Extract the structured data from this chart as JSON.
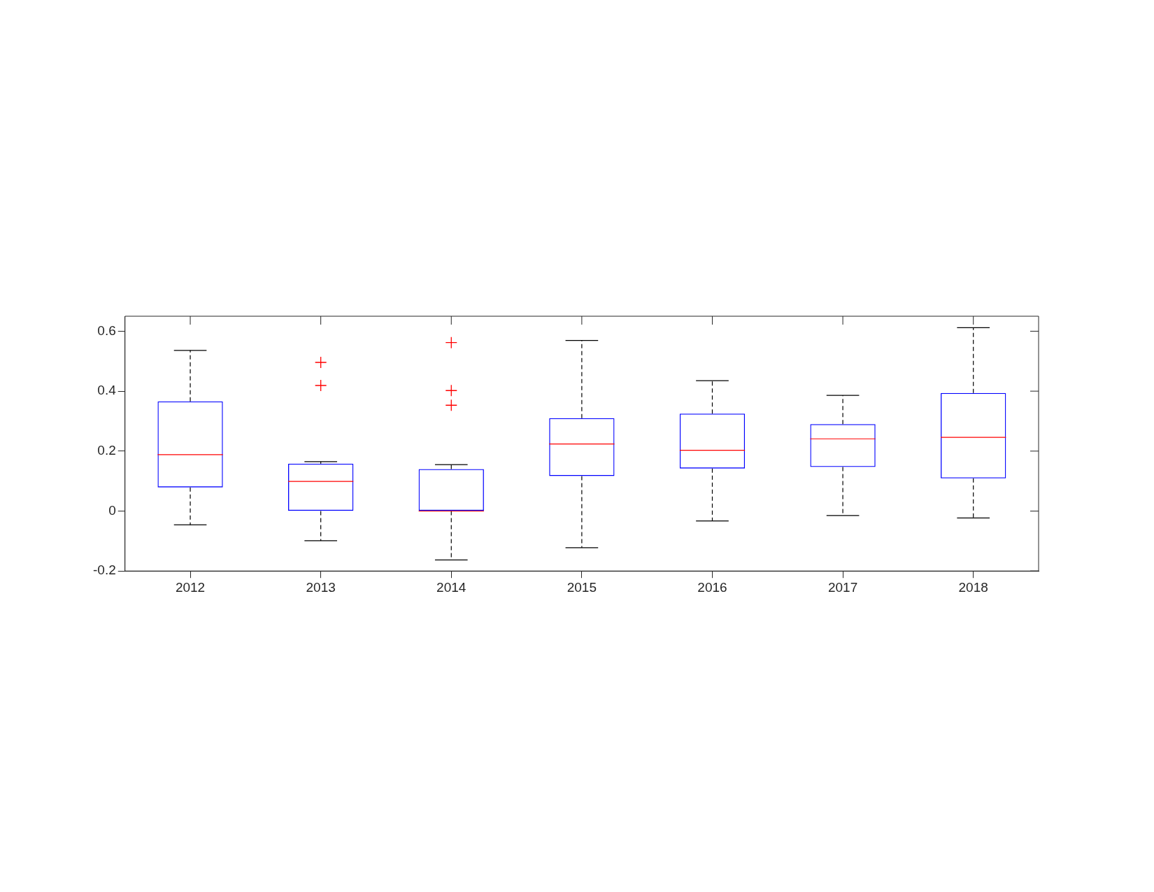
{
  "chart_data": {
    "type": "box",
    "categories": [
      "2012",
      "2013",
      "2014",
      "2015",
      "2016",
      "2017",
      "2018"
    ],
    "color": "#0000ff",
    "boxes": [
      {
        "low": -0.046,
        "q1": 0.079,
        "median": 0.188,
        "q3": 0.366,
        "high": 0.536
      },
      {
        "low": -0.099,
        "q1": 0,
        "median": 0.099,
        "q3": 0.158,
        "high": 0.165,
        "outliers": [
          0.496,
          0.419
        ]
      },
      {
        "low": -0.163,
        "q1": 0,
        "median": 0,
        "q3": 0.14,
        "high": 0.155,
        "outliers": [
          0.562,
          0.402,
          0.353
        ]
      },
      {
        "low": -0.122,
        "q1": 0.117,
        "median": 0.224,
        "q3": 0.31,
        "high": 0.569
      },
      {
        "low": -0.033,
        "q1": 0.142,
        "median": 0.203,
        "q3": 0.325,
        "high": 0.435
      },
      {
        "low": -0.015,
        "q1": 0.147,
        "median": 0.241,
        "q3": 0.29,
        "high": 0.386
      },
      {
        "low": -0.023,
        "q1": 0.109,
        "median": 0.246,
        "q3": 0.394,
        "high": 0.612
      }
    ],
    "ylim": [
      -0.2,
      0.65
    ],
    "yticks": [
      -0.2,
      0,
      0.2,
      0.4,
      0.6
    ],
    "grid": false,
    "legend": false
  }
}
